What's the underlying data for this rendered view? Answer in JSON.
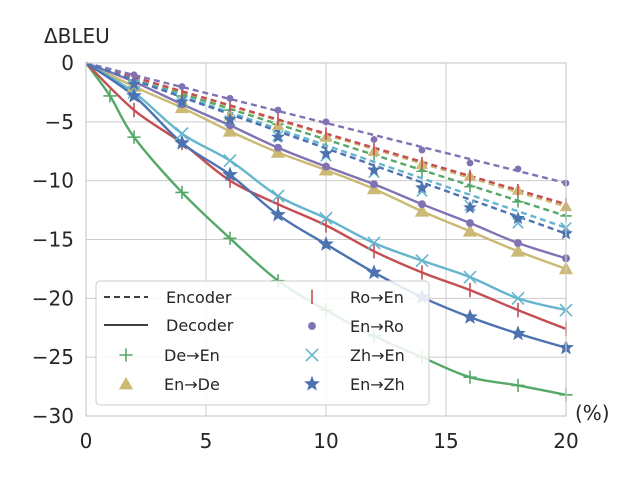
{
  "chart_data": {
    "type": "line",
    "title": "",
    "ylabel": "ΔBLEU",
    "xlabel": "(%)",
    "xlim": [
      0,
      20
    ],
    "ylim": [
      -30,
      0
    ],
    "xticks": [
      0,
      5,
      10,
      15,
      20
    ],
    "yticks": [
      0,
      -5,
      -10,
      -15,
      -20,
      -25,
      -30
    ],
    "grid": true,
    "legend_position": "bottom-left",
    "legend": {
      "style_entries": [
        {
          "label": "Encoder",
          "style": "dashed"
        },
        {
          "label": "Decoder",
          "style": "solid"
        }
      ]
    },
    "series": [
      {
        "name": "De→En",
        "color": "#55a868",
        "marker": "plus",
        "encoder": {
          "fit_end": -13.0,
          "points": [
            [
              2,
              -1.5
            ],
            [
              4,
              -2.8
            ],
            [
              6,
              -4.0
            ],
            [
              8,
              -5.2
            ],
            [
              10,
              -6.5
            ],
            [
              12,
              -7.8
            ],
            [
              14,
              -9.2
            ],
            [
              16,
              -10.5
            ],
            [
              18,
              -11.8
            ],
            [
              20,
              -13.0
            ]
          ]
        },
        "decoder": {
          "fit_end": -28.2,
          "points": [
            [
              1,
              -2.8
            ],
            [
              2,
              -6.3
            ],
            [
              4,
              -11.0
            ],
            [
              6,
              -14.9
            ],
            [
              8,
              -18.5
            ],
            [
              10,
              -21.0
            ],
            [
              12,
              -23.2
            ],
            [
              14,
              -25.0
            ],
            [
              16,
              -26.7
            ],
            [
              18,
              -27.4
            ],
            [
              20,
              -28.2
            ]
          ]
        }
      },
      {
        "name": "En→De",
        "color": "#ccb974",
        "marker": "triangle",
        "encoder": {
          "fit_end": -12.2,
          "points": [
            [
              2,
              -1.8
            ],
            [
              4,
              -3.2
            ],
            [
              6,
              -4.5
            ],
            [
              8,
              -5.3
            ],
            [
              10,
              -6.3
            ],
            [
              12,
              -7.5
            ],
            [
              14,
              -8.6
            ],
            [
              16,
              -9.6
            ],
            [
              18,
              -10.8
            ],
            [
              20,
              -12.2
            ]
          ]
        },
        "decoder": {
          "fit_end": -17.5,
          "points": [
            [
              2,
              -2.0
            ],
            [
              4,
              -3.8
            ],
            [
              6,
              -5.8
            ],
            [
              8,
              -7.6
            ],
            [
              10,
              -9.1
            ],
            [
              12,
              -10.7
            ],
            [
              14,
              -12.6
            ],
            [
              16,
              -14.3
            ],
            [
              18,
              -16.0
            ],
            [
              20,
              -17.5
            ]
          ]
        }
      },
      {
        "name": "Ro→En",
        "color": "#c44e52",
        "marker": "vline",
        "encoder": {
          "fit_end": -12.0,
          "points": [
            [
              2,
              -1.3
            ],
            [
              4,
              -2.5
            ],
            [
              6,
              -3.6
            ],
            [
              8,
              -4.8
            ],
            [
              10,
              -6.0
            ],
            [
              12,
              -7.3
            ],
            [
              14,
              -8.5
            ],
            [
              16,
              -9.6
            ],
            [
              18,
              -10.8
            ],
            [
              20,
              -12.0
            ]
          ]
        },
        "decoder": {
          "fit_end": -22.6,
          "points": [
            [
              2,
              -4.0
            ],
            [
              4,
              -6.8
            ],
            [
              6,
              -10.0
            ],
            [
              8,
              -12.0
            ],
            [
              10,
              -13.8
            ],
            [
              12,
              -16.0
            ],
            [
              14,
              -17.8
            ],
            [
              16,
              -19.3
            ],
            [
              18,
              -21.0
            ],
            [
              20,
              -22.6
            ]
          ]
        }
      },
      {
        "name": "En→Ro",
        "color": "#8172b3",
        "marker": "dot",
        "encoder": {
          "fit_end": -10.2,
          "points": [
            [
              2,
              -1.0
            ],
            [
              4,
              -2.0
            ],
            [
              6,
              -3.0
            ],
            [
              8,
              -4.0
            ],
            [
              10,
              -5.0
            ],
            [
              12,
              -6.5
            ],
            [
              14,
              -7.4
            ],
            [
              16,
              -8.5
            ],
            [
              18,
              -9.0
            ],
            [
              20,
              -10.2
            ]
          ]
        },
        "decoder": {
          "fit_end": -16.6,
          "points": [
            [
              2,
              -1.6
            ],
            [
              4,
              -3.5
            ],
            [
              6,
              -5.3
            ],
            [
              8,
              -7.2
            ],
            [
              10,
              -8.8
            ],
            [
              12,
              -10.3
            ],
            [
              14,
              -12.0
            ],
            [
              16,
              -13.6
            ],
            [
              18,
              -15.3
            ],
            [
              20,
              -16.6
            ]
          ]
        }
      },
      {
        "name": "Zh→En",
        "color": "#64b5cd",
        "marker": "x",
        "encoder": {
          "fit_end": -14.0,
          "points": [
            [
              2,
              -1.8
            ],
            [
              4,
              -3.3
            ],
            [
              6,
              -4.9
            ],
            [
              8,
              -6.2
            ],
            [
              10,
              -7.9
            ],
            [
              12,
              -9.3
            ],
            [
              14,
              -10.9
            ],
            [
              16,
              -12.1
            ],
            [
              18,
              -13.6
            ],
            [
              20,
              -14.0
            ]
          ]
        },
        "decoder": {
          "fit_end": -21.0,
          "points": [
            [
              2,
              -2.5
            ],
            [
              4,
              -6.0
            ],
            [
              6,
              -8.3
            ],
            [
              8,
              -11.3
            ],
            [
              10,
              -13.2
            ],
            [
              12,
              -15.3
            ],
            [
              14,
              -16.8
            ],
            [
              16,
              -18.2
            ],
            [
              18,
              -20.0
            ],
            [
              20,
              -21.0
            ]
          ]
        }
      },
      {
        "name": "En→Zh",
        "color": "#4c72b0",
        "marker": "star",
        "encoder": {
          "fit_end": -14.5,
          "points": [
            [
              2,
              -1.8
            ],
            [
              4,
              -3.3
            ],
            [
              6,
              -4.8
            ],
            [
              8,
              -6.3
            ],
            [
              10,
              -7.7
            ],
            [
              12,
              -9.1
            ],
            [
              14,
              -10.6
            ],
            [
              16,
              -12.3
            ],
            [
              18,
              -13.2
            ],
            [
              20,
              -14.5
            ]
          ]
        },
        "decoder": {
          "fit_end": -24.2,
          "points": [
            [
              2,
              -2.8
            ],
            [
              4,
              -6.8
            ],
            [
              6,
              -9.5
            ],
            [
              8,
              -12.9
            ],
            [
              10,
              -15.4
            ],
            [
              12,
              -17.8
            ],
            [
              14,
              -19.9
            ],
            [
              16,
              -21.6
            ],
            [
              18,
              -23.0
            ],
            [
              20,
              -24.2
            ]
          ]
        }
      }
    ]
  }
}
